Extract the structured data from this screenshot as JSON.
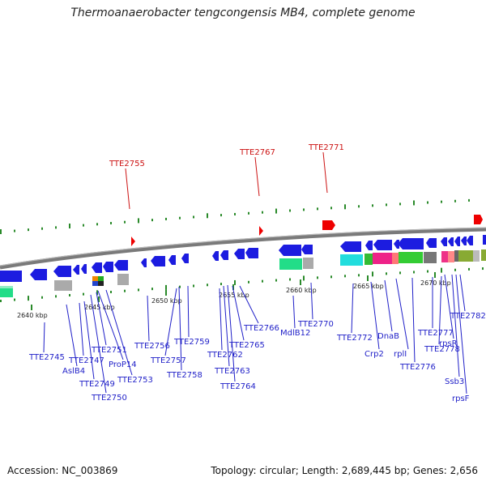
{
  "title": "Thermoanaerobacter tengcongensis MB4, complete genome",
  "footer": {
    "accession": "Accession: NC_003869",
    "summary": "Topology: circular; Length: 2,689,445 bp; Genes: 2,656"
  },
  "colors": {
    "backbone": "#7a7a7a",
    "gene": "#1c1ce0",
    "trna": "#ee0000",
    "label_gene": "#1f1fc8",
    "label_trna": "#cc1111",
    "tick": "#2a8a2a"
  },
  "ticks": [
    {
      "label": "2640 kbp"
    },
    {
      "label": "2645 kbp"
    },
    {
      "label": "2650 kbp"
    },
    {
      "label": "2655 kbp"
    },
    {
      "label": "2660 kbp"
    },
    {
      "label": "2665 kbp"
    },
    {
      "label": "2670 kbp"
    }
  ],
  "top_labels": [
    {
      "text": "TTE2755"
    },
    {
      "text": "TTE2767"
    },
    {
      "text": "TTE2771"
    }
  ],
  "gene_labels": [
    {
      "text": "TTE2745"
    },
    {
      "text": "AslB4"
    },
    {
      "text": "TTE2747"
    },
    {
      "text": "TTE2749"
    },
    {
      "text": "TTE2750"
    },
    {
      "text": "TTE2751"
    },
    {
      "text": "ProP14"
    },
    {
      "text": "TTE2753"
    },
    {
      "text": "TTE2756"
    },
    {
      "text": "TTE2757"
    },
    {
      "text": "TTE2758"
    },
    {
      "text": "TTE2759"
    },
    {
      "text": "TTE2762"
    },
    {
      "text": "TTE2763"
    },
    {
      "text": "TTE2764"
    },
    {
      "text": "TTE2765"
    },
    {
      "text": "TTE2766"
    },
    {
      "text": "MdlB12"
    },
    {
      "text": "TTE2770"
    },
    {
      "text": "TTE2772"
    },
    {
      "text": "Crp2"
    },
    {
      "text": "DnaB"
    },
    {
      "text": "rplI"
    },
    {
      "text": "TTE2776"
    },
    {
      "text": "TTE2777"
    },
    {
      "text": "TTE2778"
    },
    {
      "text": "rpsR"
    },
    {
      "text": "Ssb3"
    },
    {
      "text": "rpsF"
    },
    {
      "text": "TTE2782"
    }
  ]
}
